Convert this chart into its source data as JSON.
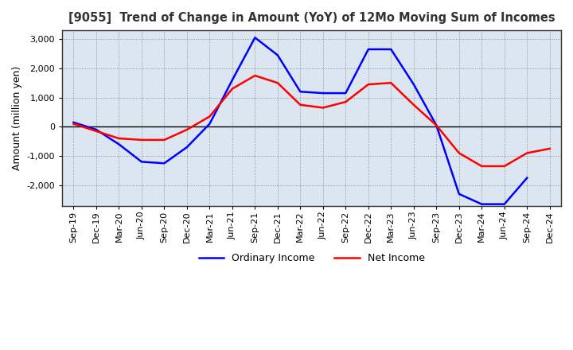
{
  "title": "[9055]  Trend of Change in Amount (YoY) of 12Mo Moving Sum of Incomes",
  "ylabel": "Amount (million yen)",
  "x_labels": [
    "Sep-19",
    "Dec-19",
    "Mar-20",
    "Jun-20",
    "Sep-20",
    "Dec-20",
    "Mar-21",
    "Jun-21",
    "Sep-21",
    "Dec-21",
    "Mar-22",
    "Jun-22",
    "Sep-22",
    "Dec-22",
    "Mar-23",
    "Jun-23",
    "Sep-23",
    "Dec-23",
    "Mar-24",
    "Jun-24",
    "Sep-24",
    "Dec-24"
  ],
  "ordinary_income": [
    150,
    -100,
    -600,
    -1200,
    -1250,
    -700,
    100,
    1600,
    3050,
    2450,
    1200,
    1150,
    1150,
    2650,
    2650,
    1450,
    50,
    -2300,
    -2650,
    -2650,
    -1750,
    null
  ],
  "net_income": [
    100,
    -150,
    -400,
    -450,
    -450,
    -100,
    350,
    1300,
    1750,
    1500,
    750,
    650,
    850,
    1450,
    1500,
    750,
    50,
    -900,
    -1350,
    -1350,
    -900,
    -750
  ],
  "ylim": [
    -2700,
    3300
  ],
  "yticks": [
    -2000,
    -1000,
    0,
    1000,
    2000,
    3000
  ],
  "line_color_ordinary": "#0000ff",
  "line_color_net": "#ff0000",
  "background_color": "#dce6f1",
  "grid_color": "#7f7f7f"
}
